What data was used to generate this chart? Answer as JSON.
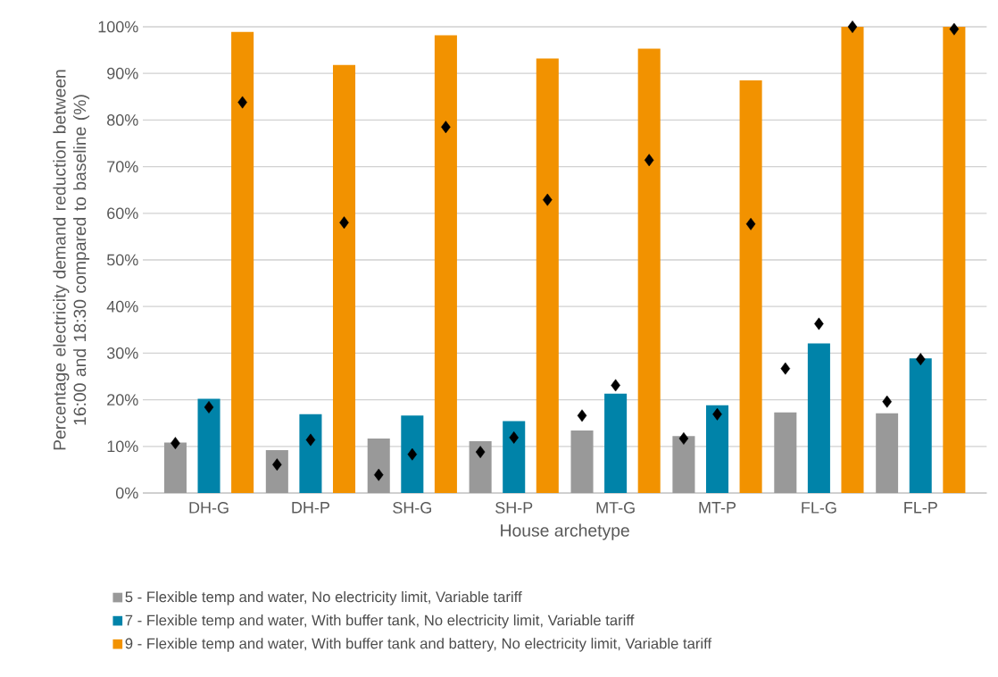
{
  "chart_data": {
    "type": "bar",
    "xlabel": "House archetype",
    "ylabel": "Percentage electricity demand reduction between 16:00 and 18:30 compared to baseline (%)",
    "categories": [
      "DH-G",
      "DH-P",
      "SH-G",
      "SH-P",
      "MT-G",
      "MT-P",
      "FL-G",
      "FL-P"
    ],
    "series": [
      {
        "name": "5 - Flexible temp and water, No electricity limit, Variable tariff",
        "color": "#999999",
        "values": [
          10.8,
          9.2,
          11.7,
          11.1,
          13.4,
          12.2,
          17.3,
          17.1
        ]
      },
      {
        "name": "7 - Flexible temp and water, With buffer tank, No electricity limit, Variable tariff",
        "color": "#0083a9",
        "values": [
          20.2,
          16.9,
          16.6,
          15.4,
          21.3,
          18.8,
          32.1,
          28.9
        ]
      },
      {
        "name": "9 - Flexible temp and water, With buffer tank and battery, No electricity limit, Variable tariff",
        "color": "#f29200",
        "values": [
          98.9,
          91.8,
          98.2,
          93.2,
          95.3,
          88.5,
          100,
          100
        ]
      },
      {
        "type": "scatter",
        "color": "#000000",
        "marker": "diamond",
        "x": [
          "DH-G",
          "DH-P",
          "SH-G",
          "SH-P",
          "MT-G",
          "MT-P",
          "FL-G",
          "FL-P"
        ],
        "values": [
          10.7,
          6.1,
          3.9,
          8.8,
          16.6,
          11.7,
          26.7,
          19.6
        ]
      },
      {
        "type": "scatter",
        "color": "#000000",
        "marker": "diamond",
        "x": [
          "DH-G",
          "DH-P",
          "SH-G",
          "SH-P",
          "MT-G",
          "MT-P",
          "FL-G",
          "FL-P"
        ],
        "values": [
          18.4,
          11.4,
          8.3,
          11.9,
          23.1,
          16.9,
          36.3,
          28.7
        ]
      },
      {
        "type": "scatter",
        "color": "#000000",
        "marker": "diamond",
        "x": [
          "DH-G",
          "DH-P",
          "SH-G",
          "SH-P",
          "MT-G",
          "MT-P",
          "FL-G",
          "FL-P"
        ],
        "values": [
          83.8,
          58.0,
          78.5,
          62.9,
          71.4,
          57.7,
          100,
          99.5
        ]
      }
    ],
    "ylim": [
      0,
      100
    ],
    "yticks": [
      {
        "value": 0,
        "label": "0%"
      },
      {
        "value": 10,
        "label": "10%"
      },
      {
        "value": 20,
        "label": "20%"
      },
      {
        "value": 30,
        "label": "30%"
      },
      {
        "value": 40,
        "label": "40%"
      },
      {
        "value": 50,
        "label": "50%"
      },
      {
        "value": 60,
        "label": "60%"
      },
      {
        "value": 70,
        "label": "70%"
      },
      {
        "value": 80,
        "label": "80%"
      },
      {
        "value": 90,
        "label": "90%"
      },
      {
        "value": 100,
        "label": "100%"
      }
    ],
    "grid": "y",
    "legend": "bottom"
  }
}
